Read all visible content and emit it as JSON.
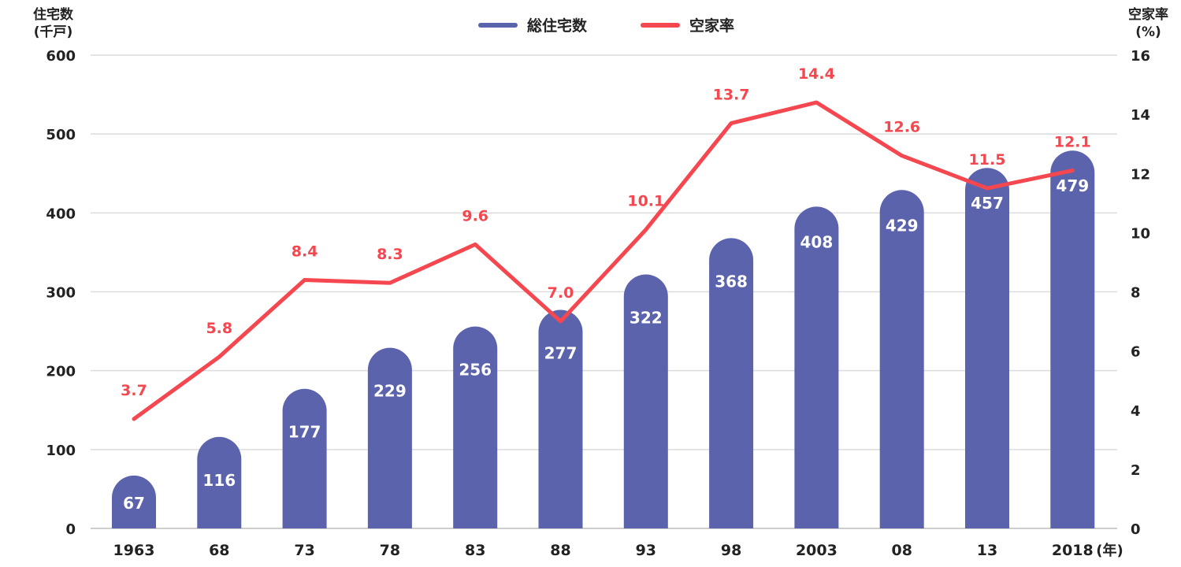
{
  "chart_data": {
    "type": "bar+line",
    "categories": [
      "1963",
      "68",
      "73",
      "78",
      "83",
      "88",
      "93",
      "98",
      "2003",
      "08",
      "13",
      "2018"
    ],
    "series": [
      {
        "name": "総住宅数",
        "type": "bar",
        "axis": "left",
        "values": [
          67,
          116,
          177,
          229,
          256,
          277,
          322,
          368,
          408,
          429,
          457,
          479
        ],
        "labels": [
          "67",
          "116",
          "177",
          "229",
          "256",
          "277",
          "322",
          "368",
          "408",
          "429",
          "457",
          "479"
        ],
        "color": "#5c63ad"
      },
      {
        "name": "空家率",
        "type": "line",
        "axis": "right",
        "values": [
          3.7,
          5.8,
          8.4,
          8.3,
          9.6,
          7.0,
          10.1,
          13.7,
          14.4,
          12.6,
          11.5,
          12.1
        ],
        "labels": [
          "3.7",
          "5.8",
          "8.4",
          "8.3",
          "9.6",
          "7.0",
          "10.1",
          "13.7",
          "14.4",
          "12.6",
          "11.5",
          "12.1"
        ],
        "color": "#f4474f"
      }
    ],
    "y_left": {
      "label_line1": "住宅数",
      "label_line2": "(千戸)",
      "ylim": [
        0,
        600
      ],
      "ticks": [
        "0",
        "100",
        "200",
        "300",
        "400",
        "500",
        "600"
      ]
    },
    "y_right": {
      "label_line1": "空家率",
      "label_line2": "(%)",
      "ylim": [
        0,
        16
      ],
      "ticks": [
        "0",
        "2",
        "4",
        "6",
        "8",
        "10",
        "12",
        "14",
        "16"
      ]
    },
    "x_unit": "(年)",
    "grid": true,
    "legend_position": "top-center"
  }
}
